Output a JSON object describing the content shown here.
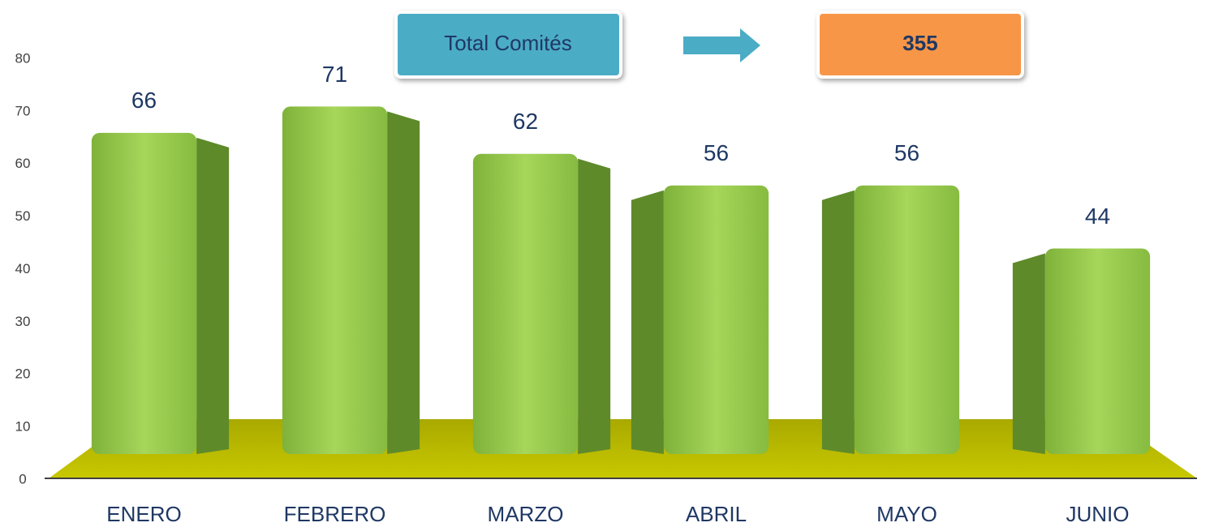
{
  "chart_data": {
    "type": "bar",
    "header_label": "Total Comités",
    "total": 355,
    "categories": [
      "ENERO",
      "FEBRERO",
      "MARZO",
      "ABRIL",
      "MAYO",
      "JUNIO"
    ],
    "values": [
      66,
      71,
      62,
      56,
      56,
      44
    ],
    "color": "#92c94a",
    "ylim": [
      0,
      80
    ],
    "yticks": [
      0,
      10,
      20,
      30,
      40,
      50,
      60,
      70,
      80
    ]
  }
}
